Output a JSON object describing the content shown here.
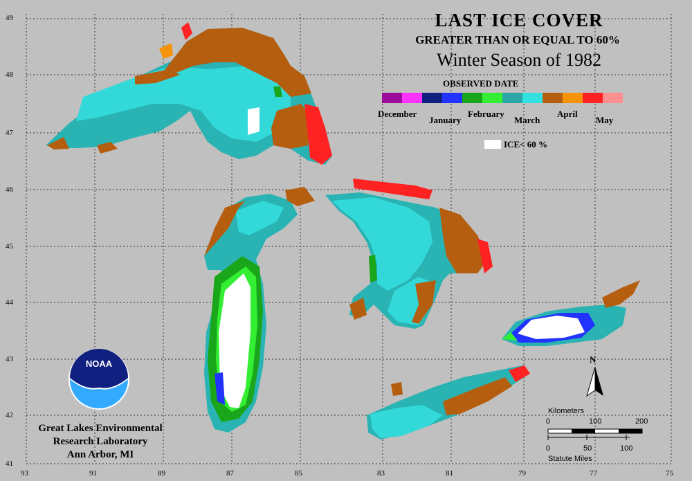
{
  "title": {
    "line1": "LAST ICE COVER",
    "line2": "GREATER THAN OR EQUAL TO 60%",
    "line3": "Winter Season of 1982"
  },
  "legend": {
    "title": "OBSERVED DATE",
    "months": [
      "December",
      "January",
      "February",
      "March",
      "April",
      "May"
    ],
    "colors": [
      "#9b0a9b",
      "#ff33ff",
      "#102080",
      "#2233ff",
      "#1aa61a",
      "#33ee33",
      "#2aa6a6",
      "#33e0e0",
      "#b55e0f",
      "#f5930a",
      "#ff2222",
      "#ff9090"
    ],
    "ice_label": "ICE< 60 %"
  },
  "axes": {
    "latitudes": [
      "49",
      "48",
      "47",
      "46",
      "45",
      "44",
      "43",
      "42",
      "41"
    ],
    "longitudes": [
      "93",
      "91",
      "89",
      "87",
      "85",
      "83",
      "81",
      "79",
      "77",
      "75"
    ]
  },
  "credit": {
    "line1": "Great Lakes Environmental",
    "line2": "Research Laboratory",
    "line3": "Ann Arbor, MI"
  },
  "logo": {
    "text": "NOAA"
  },
  "scale": {
    "km_label": "Kilometers",
    "km_ticks": [
      "0",
      "100",
      "200"
    ],
    "mi_label": "Statute Miles",
    "mi_ticks": [
      "0",
      "50",
      "100"
    ]
  },
  "north": "N"
}
